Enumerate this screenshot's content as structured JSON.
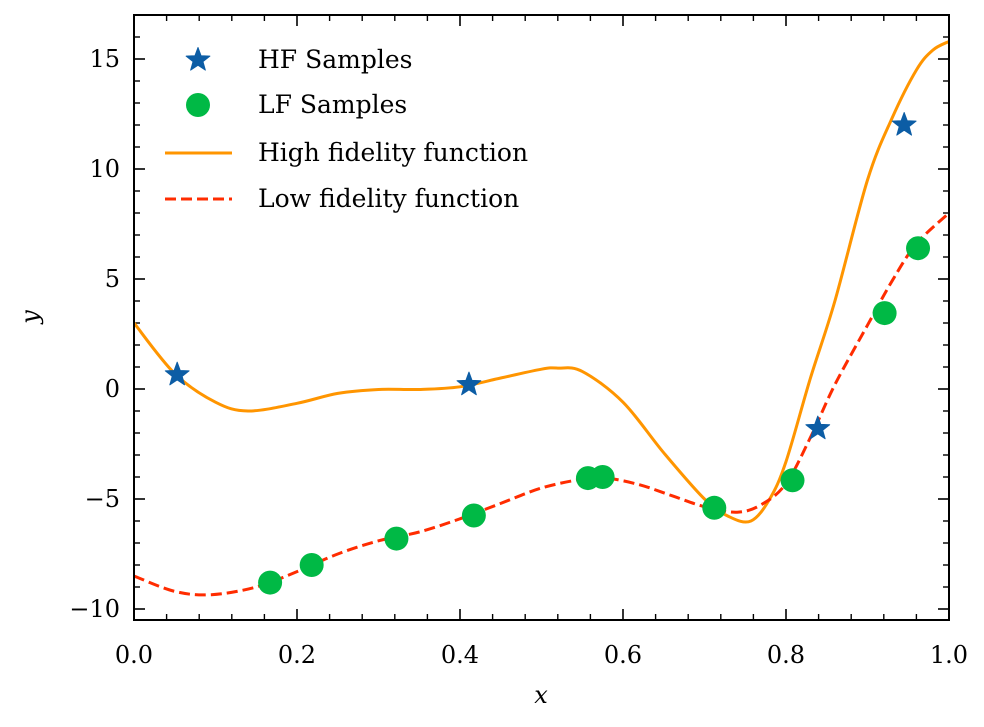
{
  "chart_data": {
    "type": "line",
    "xlabel": "x",
    "ylabel": "y",
    "xlim": [
      0.0,
      1.0
    ],
    "ylim": [
      -10.5,
      17.0
    ],
    "xticks": [
      0.0,
      0.2,
      0.4,
      0.6,
      0.8,
      1.0
    ],
    "xtick_labels": [
      "0.0",
      "0.2",
      "0.4",
      "0.6",
      "0.8",
      "1.0"
    ],
    "yticks": [
      -10,
      -5,
      0,
      5,
      10,
      15
    ],
    "ytick_labels": [
      "−10",
      "−5",
      "0",
      "5",
      "10",
      "15"
    ],
    "grid": false,
    "legend_position": "top-left",
    "series": [
      {
        "name": "HF Samples",
        "kind": "scatter",
        "marker": "star",
        "color": "#0C5DA5",
        "x": [
          0.053,
          0.411,
          0.839,
          0.945
        ],
        "y": [
          0.65,
          0.2,
          -1.8,
          12.0
        ]
      },
      {
        "name": "LF Samples",
        "kind": "scatter",
        "marker": "circle",
        "color": "#00B945",
        "x": [
          0.167,
          0.218,
          0.322,
          0.417,
          0.557,
          0.575,
          0.712,
          0.808,
          0.921,
          0.962
        ],
        "y": [
          -8.8,
          -8.0,
          -6.8,
          -5.75,
          -4.05,
          -4.0,
          -5.4,
          -4.15,
          3.45,
          6.4
        ]
      },
      {
        "name": "High fidelity function",
        "kind": "line",
        "style": "solid",
        "color": "#FF9500",
        "x": [
          0.0,
          0.05,
          0.1,
          0.14,
          0.2,
          0.25,
          0.3,
          0.35,
          0.4,
          0.45,
          0.5,
          0.52,
          0.55,
          0.6,
          0.65,
          0.7,
          0.73,
          0.757,
          0.78,
          0.8,
          0.83,
          0.86,
          0.9,
          0.93,
          0.96,
          0.98,
          1.0
        ],
        "y": [
          3.0,
          0.7,
          -0.6,
          -1.0,
          -0.65,
          -0.2,
          -0.02,
          -0.02,
          0.1,
          0.5,
          0.9,
          0.95,
          0.8,
          -0.6,
          -2.9,
          -5.0,
          -5.8,
          -6.0,
          -5.0,
          -3.3,
          0.5,
          4.0,
          9.5,
          12.3,
          14.5,
          15.4,
          15.8
        ]
      },
      {
        "name": "Low fidelity function",
        "kind": "line",
        "style": "dashed",
        "color": "#FF2C00",
        "x": [
          0.0,
          0.05,
          0.095,
          0.15,
          0.2,
          0.25,
          0.3,
          0.35,
          0.4,
          0.45,
          0.5,
          0.55,
          0.58,
          0.62,
          0.66,
          0.7,
          0.74,
          0.77,
          0.8,
          0.83,
          0.86,
          0.9,
          0.93,
          0.96,
          1.0
        ],
        "y": [
          -8.5,
          -9.2,
          -9.35,
          -9.0,
          -8.3,
          -7.5,
          -6.9,
          -6.5,
          -5.9,
          -5.2,
          -4.5,
          -4.1,
          -4.05,
          -4.35,
          -4.85,
          -5.35,
          -5.6,
          -5.25,
          -4.3,
          -2.2,
          0.2,
          2.9,
          4.9,
          6.6,
          8.0
        ]
      }
    ]
  }
}
